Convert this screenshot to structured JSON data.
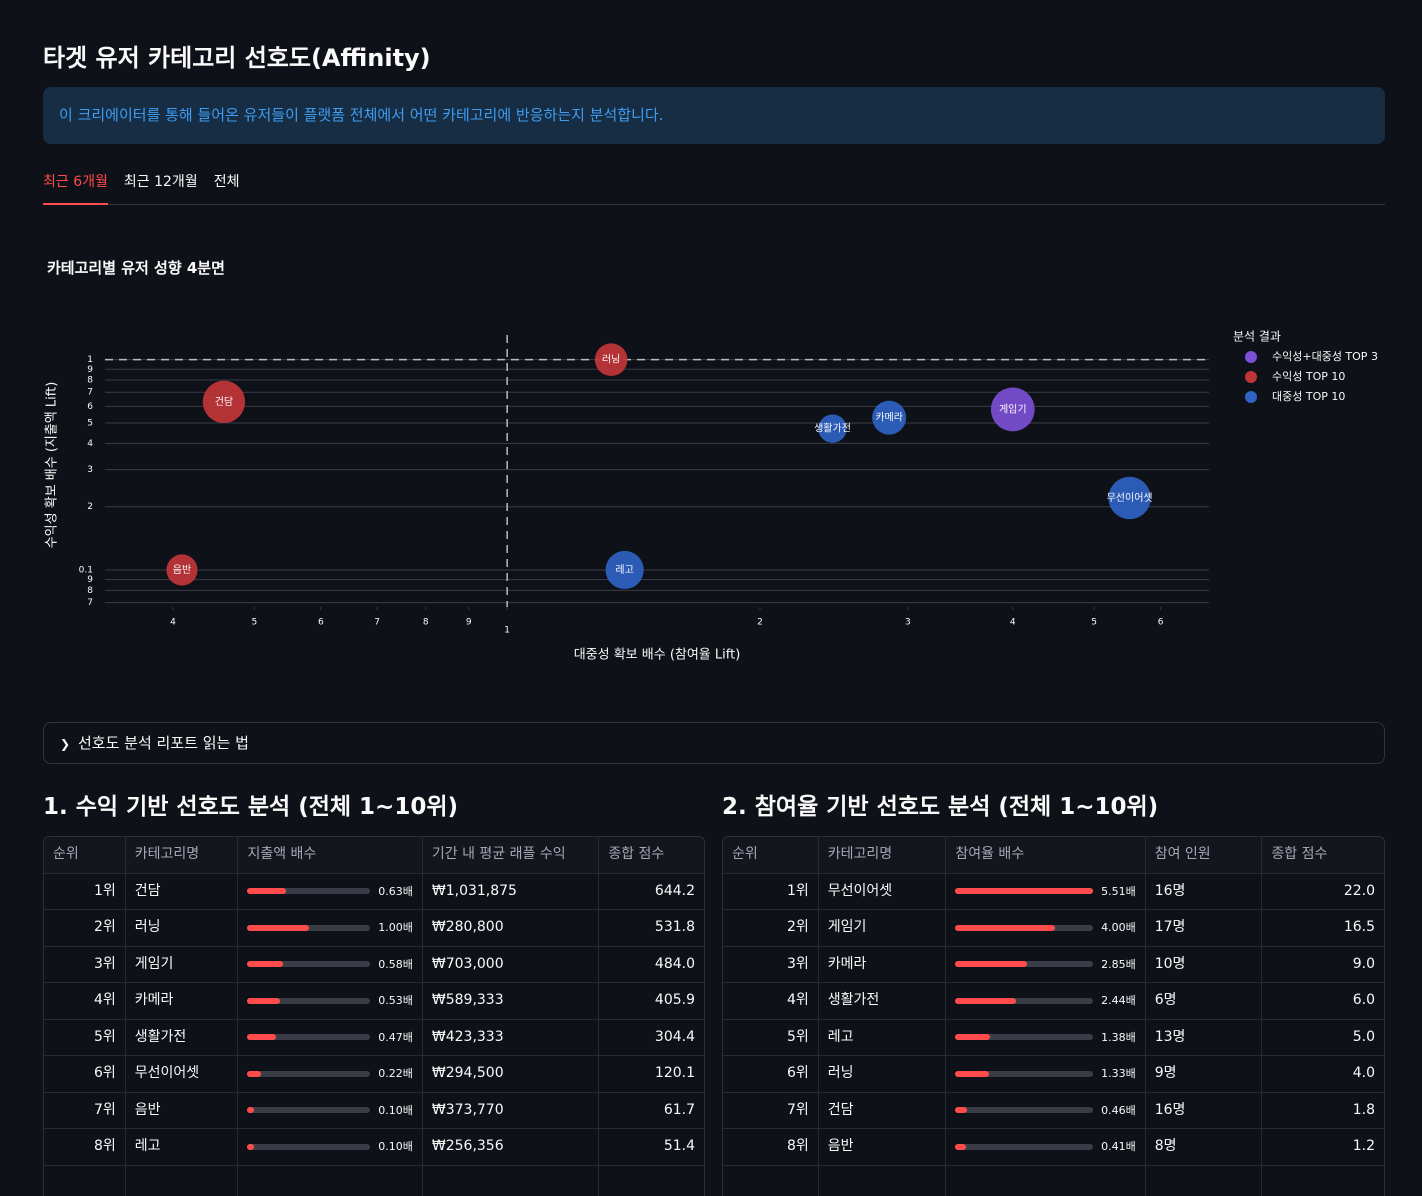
{
  "header": {
    "title": "타겟 유저 카테고리 선호도(Affinity)",
    "info": "이 크리에이터를 통해 들어온 유저들이 플랫폼 전체에서 어떤 카테고리에 반응하는지 분석합니다."
  },
  "tabs": {
    "items": [
      "최근 6개월",
      "최근 12개월",
      "전체"
    ],
    "active": 0
  },
  "chart_data": {
    "type": "scatter",
    "title": "카테고리별 유저 성향 4분면",
    "x_label": "대중성 확보 배수 (참여율 Lift)",
    "y_label": "수익성 확보 배수 (지출액 Lift)",
    "log_x": true,
    "log_y": true,
    "grid": true,
    "legend_title": "분석 결과",
    "legend": "right",
    "vlines": [
      1
    ],
    "hlines": [
      1
    ],
    "xlim": [
      0.332,
      6.85
    ],
    "xticks": [
      {
        "value": 0.4,
        "label": "4"
      },
      {
        "value": 0.5,
        "label": "5"
      },
      {
        "value": 0.6,
        "label": "6"
      },
      {
        "value": 0.7,
        "label": "7"
      },
      {
        "value": 0.8,
        "label": "8"
      },
      {
        "value": 0.9,
        "label": "9"
      },
      1,
      2,
      3,
      4,
      5,
      6
    ],
    "ylim": [
      0.0667,
      1.31
    ],
    "yticks": [
      {
        "value": 0.07,
        "label": "7"
      },
      {
        "value": 0.08,
        "label": "8"
      },
      {
        "value": 0.09,
        "label": "9"
      },
      0.1,
      {
        "value": 0.2,
        "label": "2"
      },
      {
        "value": 0.3,
        "label": "3"
      },
      {
        "value": 0.4,
        "label": "4"
      },
      {
        "value": 0.5,
        "label": "5"
      },
      {
        "value": 0.6,
        "label": "6"
      },
      {
        "value": 0.7,
        "label": "7"
      },
      {
        "value": 0.8,
        "label": "8"
      },
      {
        "value": 0.9,
        "label": "9"
      },
      1
    ],
    "series": [
      {
        "name": "수익성+대중성 TOP 3",
        "color": "#7b4fd6",
        "labels": [
          "게임기"
        ],
        "x": [
          4.0
        ],
        "values": [
          0.58
        ],
        "sizes": [
          17
        ]
      },
      {
        "name": "수익성 TOP 10",
        "color": "#c0353a",
        "labels": [
          "러닝",
          "건담",
          "음반"
        ],
        "x": [
          1.33,
          0.46,
          0.41
        ],
        "values": [
          1.0,
          0.63,
          0.1
        ],
        "sizes": [
          9,
          16,
          8
        ]
      },
      {
        "name": "대중성 TOP 10",
        "color": "#2f62c4",
        "labels": [
          "생활가전",
          "카메라",
          "무선이어셋",
          "레고"
        ],
        "x": [
          2.44,
          2.85,
          5.51,
          1.38
        ],
        "values": [
          0.47,
          0.53,
          0.22,
          0.1
        ],
        "sizes": [
          6,
          10,
          16,
          13
        ]
      }
    ]
  },
  "expander": {
    "label": "선호도 분석 리포트 읽는 법"
  },
  "table1": {
    "title": "1. 수익 기반 선호도 분석 (전체 1~10위)",
    "columns": [
      "순위",
      "카테고리명",
      "지출액 배수",
      "기간 내 평균 래플 수익",
      "종합 점수"
    ],
    "bar_max": 2,
    "rows": [
      [
        "1위",
        "건담",
        {
          "value": 0.63,
          "label": "0.63배"
        },
        "₩1,031,875",
        "644.2"
      ],
      [
        "2위",
        "러닝",
        {
          "value": 1.0,
          "label": "1.00배"
        },
        "₩280,800",
        "531.8"
      ],
      [
        "3위",
        "게임기",
        {
          "value": 0.58,
          "label": "0.58배"
        },
        "₩703,000",
        "484.0"
      ],
      [
        "4위",
        "카메라",
        {
          "value": 0.53,
          "label": "0.53배"
        },
        "₩589,333",
        "405.9"
      ],
      [
        "5위",
        "생활가전",
        {
          "value": 0.47,
          "label": "0.47배"
        },
        "₩423,333",
        "304.4"
      ],
      [
        "6위",
        "무선이어셋",
        {
          "value": 0.22,
          "label": "0.22배"
        },
        "₩294,500",
        "120.1"
      ],
      [
        "7위",
        "음반",
        {
          "value": 0.1,
          "label": "0.10배"
        },
        "₩373,770",
        "61.7"
      ],
      [
        "8위",
        "레고",
        {
          "value": 0.1,
          "label": "0.10배"
        },
        "₩256,356",
        "51.4"
      ]
    ]
  },
  "table2": {
    "title": "2. 참여율 기반 선호도 분석 (전체 1~10위)",
    "columns": [
      "순위",
      "카테고리명",
      "참여율 배수",
      "참여 인원",
      "종합 점수"
    ],
    "bar_max": 5.51,
    "rows": [
      [
        "1위",
        "무선이어셋",
        {
          "value": 5.51,
          "label": "5.51배"
        },
        "16명",
        "22.0"
      ],
      [
        "2위",
        "게임기",
        {
          "value": 4.0,
          "label": "4.00배"
        },
        "17명",
        "16.5"
      ],
      [
        "3위",
        "카메라",
        {
          "value": 2.85,
          "label": "2.85배"
        },
        "10명",
        "9.0"
      ],
      [
        "4위",
        "생활가전",
        {
          "value": 2.44,
          "label": "2.44배"
        },
        "6명",
        "6.0"
      ],
      [
        "5위",
        "레고",
        {
          "value": 1.38,
          "label": "1.38배"
        },
        "13명",
        "5.0"
      ],
      [
        "6위",
        "러닝",
        {
          "value": 1.33,
          "label": "1.33배"
        },
        "9명",
        "4.0"
      ],
      [
        "7위",
        "건담",
        {
          "value": 0.46,
          "label": "0.46배"
        },
        "16명",
        "1.8"
      ],
      [
        "8위",
        "음반",
        {
          "value": 0.41,
          "label": "0.41배"
        },
        "8명",
        "1.2"
      ]
    ]
  }
}
